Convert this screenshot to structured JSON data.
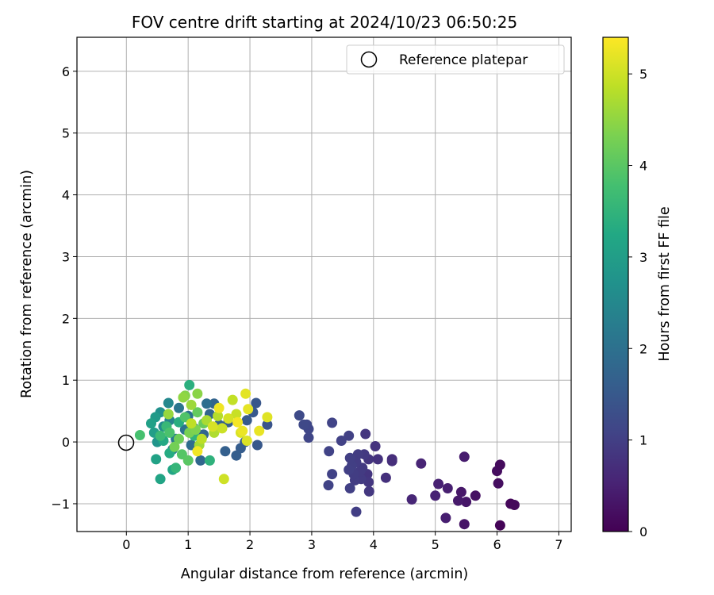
{
  "chart_data": {
    "type": "scatter",
    "title": "FOV centre drift starting at 2024/10/23 06:50:25",
    "xlabel": "Angular distance from reference (arcmin)",
    "ylabel": "Rotation from reference (arcmin)",
    "xlim": [
      -0.8,
      7.2
    ],
    "ylim": [
      -1.45,
      6.55
    ],
    "x_ticks": [
      0,
      1,
      2,
      3,
      4,
      5,
      6,
      7
    ],
    "y_ticks": [
      -1,
      0,
      1,
      2,
      3,
      4,
      5,
      6
    ],
    "x_tick_labels": [
      "0",
      "1",
      "2",
      "3",
      "4",
      "5",
      "6",
      "7"
    ],
    "y_tick_labels": [
      "−1",
      "0",
      "1",
      "2",
      "3",
      "4",
      "5",
      "6"
    ],
    "grid": true,
    "legend": {
      "position": "top-right",
      "entries": [
        {
          "label": "Reference platepar",
          "marker": "open-circle",
          "x": 0,
          "y": 0
        }
      ]
    },
    "colorbar": {
      "label": "Hours from first FF file",
      "colormap": "viridis",
      "range": [
        0,
        5.4
      ],
      "ticks": [
        0,
        1,
        2,
        3,
        4,
        5
      ],
      "tick_labels": [
        "0",
        "1",
        "2",
        "3",
        "4",
        "5"
      ]
    },
    "points": [
      [
        6.05,
        -1.35,
        0.05
      ],
      [
        6.22,
        -1.0,
        0.1
      ],
      [
        6.28,
        -1.02,
        0.12
      ],
      [
        6.0,
        -0.47,
        0.18
      ],
      [
        6.05,
        -0.37,
        0.15
      ],
      [
        6.02,
        -0.67,
        0.2
      ],
      [
        5.65,
        -0.87,
        0.25
      ],
      [
        5.47,
        -1.33,
        0.3
      ],
      [
        5.42,
        -0.81,
        0.35
      ],
      [
        5.5,
        -0.97,
        0.33
      ],
      [
        5.37,
        -0.95,
        0.38
      ],
      [
        5.47,
        -0.24,
        0.42
      ],
      [
        5.17,
        -1.23,
        0.45
      ],
      [
        5.2,
        -0.75,
        0.48
      ],
      [
        5.05,
        -0.68,
        0.5
      ],
      [
        5.0,
        -0.87,
        0.52
      ],
      [
        4.77,
        -0.35,
        0.55
      ],
      [
        4.62,
        -0.93,
        0.58
      ],
      [
        4.3,
        -0.28,
        0.7
      ],
      [
        4.3,
        -0.31,
        0.72
      ],
      [
        4.2,
        -0.58,
        0.75
      ],
      [
        4.07,
        -0.28,
        0.78
      ],
      [
        4.03,
        -0.07,
        0.8
      ],
      [
        3.92,
        -0.28,
        0.82
      ],
      [
        3.9,
        -0.52,
        0.83
      ],
      [
        3.87,
        0.13,
        0.85
      ],
      [
        3.92,
        -0.65,
        0.86
      ],
      [
        3.93,
        -0.8,
        0.88
      ],
      [
        3.85,
        -0.2,
        0.9
      ],
      [
        3.82,
        -0.42,
        0.91
      ],
      [
        3.8,
        -0.6,
        0.92
      ],
      [
        3.78,
        -0.48,
        0.93
      ],
      [
        3.75,
        -0.2,
        0.94
      ],
      [
        3.72,
        -0.33,
        0.95
      ],
      [
        3.7,
        -0.62,
        0.96
      ],
      [
        3.68,
        -0.52,
        0.97
      ],
      [
        3.72,
        -1.13,
        0.98
      ],
      [
        3.65,
        -0.38,
        0.99
      ],
      [
        3.62,
        -0.26,
        1.0
      ],
      [
        3.6,
        -0.45,
        1.01
      ],
      [
        3.62,
        -0.75,
        1.02
      ],
      [
        3.6,
        0.1,
        1.03
      ],
      [
        3.48,
        0.02,
        1.04
      ],
      [
        3.33,
        -0.52,
        1.05
      ],
      [
        3.27,
        -0.7,
        1.06
      ],
      [
        3.28,
        -0.15,
        1.07
      ],
      [
        3.33,
        0.31,
        1.08
      ],
      [
        2.95,
        0.07,
        1.12
      ],
      [
        2.95,
        0.21,
        1.14
      ],
      [
        2.92,
        0.28,
        1.15
      ],
      [
        2.87,
        0.28,
        1.17
      ],
      [
        2.8,
        0.43,
        1.2
      ],
      [
        2.28,
        0.28,
        1.4
      ],
      [
        2.1,
        0.63,
        1.45
      ],
      [
        2.12,
        -0.05,
        1.48
      ],
      [
        2.05,
        0.48,
        1.5
      ],
      [
        1.95,
        0.35,
        1.52
      ],
      [
        1.92,
        0.0,
        1.55
      ],
      [
        1.85,
        -0.1,
        1.58
      ],
      [
        1.78,
        -0.22,
        1.6
      ],
      [
        1.65,
        0.32,
        1.62
      ],
      [
        1.6,
        -0.15,
        1.65
      ],
      [
        1.5,
        0.28,
        1.68
      ],
      [
        1.42,
        0.62,
        1.72
      ],
      [
        1.35,
        0.45,
        1.75
      ],
      [
        1.25,
        0.12,
        1.78
      ],
      [
        1.2,
        -0.3,
        1.8
      ],
      [
        1.1,
        0.22,
        1.85
      ],
      [
        1.05,
        -0.05,
        1.9
      ],
      [
        1.3,
        0.62,
        1.95
      ],
      [
        1.0,
        0.42,
        2.0
      ],
      [
        0.95,
        0.2,
        2.05
      ],
      [
        0.85,
        0.55,
        2.1
      ],
      [
        0.8,
        0.05,
        2.2
      ],
      [
        0.75,
        -0.12,
        2.3
      ],
      [
        0.7,
        0.35,
        2.4
      ],
      [
        0.68,
        0.63,
        2.5
      ],
      [
        0.6,
        0.25,
        2.6
      ],
      [
        0.55,
        0.48,
        2.7
      ],
      [
        0.5,
        0.0,
        2.8
      ],
      [
        0.47,
        0.4,
        2.9
      ],
      [
        0.45,
        0.15,
        3.0
      ],
      [
        0.4,
        0.3,
        3.05
      ],
      [
        0.48,
        -0.28,
        3.1
      ],
      [
        0.55,
        -0.6,
        3.15
      ],
      [
        0.75,
        -0.45,
        3.2
      ],
      [
        0.6,
        0.02,
        3.25
      ],
      [
        0.7,
        -0.18,
        3.3
      ],
      [
        0.85,
        0.32,
        3.35
      ],
      [
        1.02,
        0.92,
        3.4
      ],
      [
        1.35,
        -0.3,
        3.45
      ],
      [
        1.1,
        0.1,
        3.5
      ],
      [
        0.8,
        -0.42,
        3.55
      ],
      [
        0.65,
        0.25,
        3.6
      ],
      [
        0.55,
        0.1,
        3.65
      ],
      [
        0.22,
        0.11,
        3.8
      ],
      [
        0.7,
        0.15,
        3.85
      ],
      [
        0.95,
        0.4,
        3.9
      ],
      [
        0.9,
        -0.2,
        3.95
      ],
      [
        1.0,
        -0.3,
        4.0
      ],
      [
        1.15,
        0.48,
        4.1
      ],
      [
        1.25,
        0.3,
        4.15
      ],
      [
        0.85,
        0.05,
        4.2
      ],
      [
        0.78,
        -0.08,
        4.25
      ],
      [
        1.02,
        0.15,
        4.3
      ],
      [
        1.12,
        0.2,
        4.35
      ],
      [
        0.95,
        0.75,
        4.4
      ],
      [
        1.15,
        0.78,
        4.45
      ],
      [
        0.92,
        0.72,
        4.5
      ],
      [
        0.68,
        0.45,
        4.55
      ],
      [
        1.05,
        0.6,
        4.6
      ],
      [
        1.18,
        -0.05,
        4.65
      ],
      [
        1.3,
        0.35,
        4.7
      ],
      [
        1.42,
        0.15,
        4.75
      ],
      [
        1.48,
        0.42,
        4.8
      ],
      [
        1.22,
        0.05,
        4.85
      ],
      [
        1.05,
        0.3,
        4.88
      ],
      [
        1.72,
        0.68,
        4.9
      ],
      [
        1.78,
        0.45,
        4.95
      ],
      [
        1.55,
        0.22,
        4.98
      ],
      [
        1.58,
        -0.6,
        5.0
      ],
      [
        1.65,
        0.38,
        5.05
      ],
      [
        1.4,
        0.25,
        5.08
      ],
      [
        1.85,
        0.15,
        5.1
      ],
      [
        1.95,
        0.02,
        5.12
      ],
      [
        2.28,
        0.4,
        5.15
      ],
      [
        1.93,
        0.78,
        5.18
      ],
      [
        1.97,
        0.53,
        5.2
      ],
      [
        2.15,
        0.18,
        5.22
      ],
      [
        1.88,
        0.18,
        5.25
      ],
      [
        1.5,
        0.55,
        5.28
      ],
      [
        1.15,
        -0.15,
        5.3
      ],
      [
        1.8,
        0.32,
        5.32
      ]
    ]
  }
}
